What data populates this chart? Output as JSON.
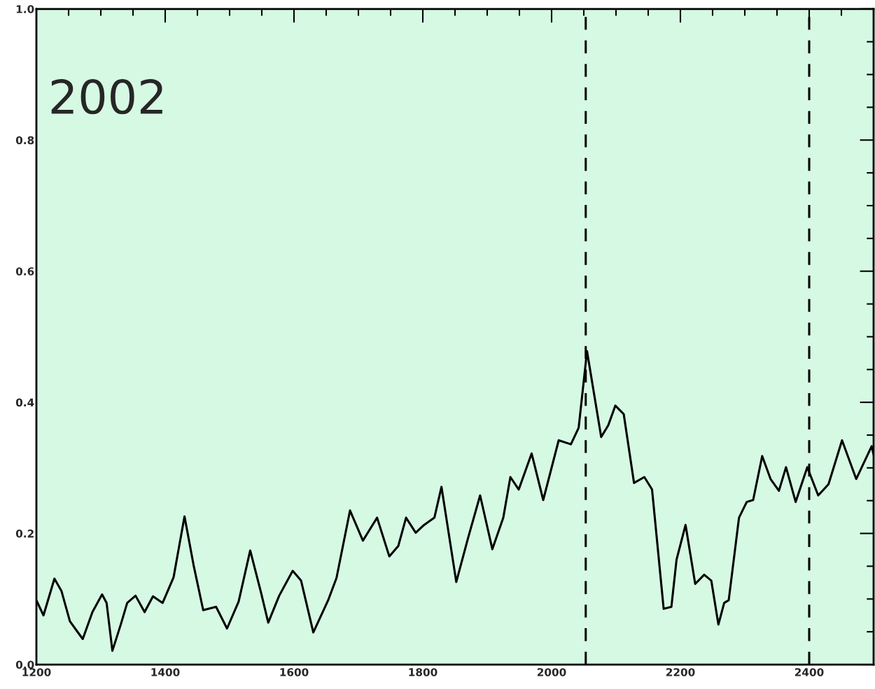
{
  "chart_data": {
    "type": "line",
    "annotations": [
      "2002"
    ],
    "xlim": [
      1200,
      2500
    ],
    "ylim": [
      0,
      1
    ],
    "xticks": [
      1200,
      1400,
      1600,
      1800,
      2000,
      2200,
      2400
    ],
    "yticks": [
      {
        "value": 0,
        "label": "0.0"
      },
      {
        "value": 0.2,
        "label": "0.2"
      },
      {
        "value": 0.4,
        "label": "0.4"
      },
      {
        "value": 0.6,
        "label": "0.6"
      },
      {
        "value": 0.8,
        "label": "0.8"
      },
      {
        "value": 1,
        "label": "1.0"
      }
    ],
    "grid": false,
    "legend": false,
    "line_style": "solid",
    "marker": "none",
    "ref_lines": [
      {
        "axis": "x",
        "value": 2053,
        "color": "#000000",
        "line_style": "dashed"
      },
      {
        "axis": "x",
        "value": 2400,
        "color": "#000000",
        "line_style": "dashed"
      }
    ],
    "series": [
      {
        "color": "#000000",
        "x": [
          1200,
          1211,
          1228,
          1239,
          1252,
          1263,
          1272,
          1287,
          1302,
          1309,
          1318,
          1331,
          1341,
          1354,
          1368,
          1381,
          1396,
          1413,
          1430,
          1444,
          1459,
          1479,
          1496,
          1514,
          1532,
          1549,
          1560,
          1577,
          1598,
          1611,
          1630,
          1653,
          1666,
          1687,
          1707,
          1729,
          1748,
          1762,
          1774,
          1789,
          1802,
          1818,
          1829,
          1852,
          1870,
          1889,
          1908,
          1925,
          1936,
          1949,
          1969,
          1987,
          2011,
          2030,
          2042,
          2055,
          2077,
          2088,
          2099,
          2112,
          2128,
          2144,
          2156,
          2174,
          2186,
          2194,
          2208,
          2223,
          2237,
          2248,
          2259,
          2268,
          2275,
          2291,
          2303,
          2313,
          2327,
          2340,
          2353,
          2364,
          2379,
          2397,
          2414,
          2430,
          2451,
          2473,
          2497,
          2500
        ],
        "values": [
          0.098,
          0.075,
          0.131,
          0.112,
          0.066,
          0.051,
          0.039,
          0.08,
          0.107,
          0.094,
          0.021,
          0.061,
          0.094,
          0.105,
          0.08,
          0.104,
          0.094,
          0.133,
          0.226,
          0.152,
          0.083,
          0.088,
          0.055,
          0.096,
          0.174,
          0.109,
          0.064,
          0.105,
          0.143,
          0.128,
          0.049,
          0.098,
          0.132,
          0.235,
          0.189,
          0.224,
          0.165,
          0.181,
          0.224,
          0.201,
          0.213,
          0.224,
          0.271,
          0.126,
          0.192,
          0.258,
          0.176,
          0.224,
          0.286,
          0.267,
          0.322,
          0.251,
          0.342,
          0.336,
          0.361,
          0.478,
          0.347,
          0.365,
          0.395,
          0.382,
          0.277,
          0.286,
          0.267,
          0.085,
          0.088,
          0.16,
          0.213,
          0.123,
          0.137,
          0.128,
          0.061,
          0.094,
          0.098,
          0.224,
          0.248,
          0.251,
          0.318,
          0.283,
          0.265,
          0.301,
          0.248,
          0.301,
          0.258,
          0.275,
          0.342,
          0.283,
          0.333,
          0.32
        ]
      }
    ]
  }
}
